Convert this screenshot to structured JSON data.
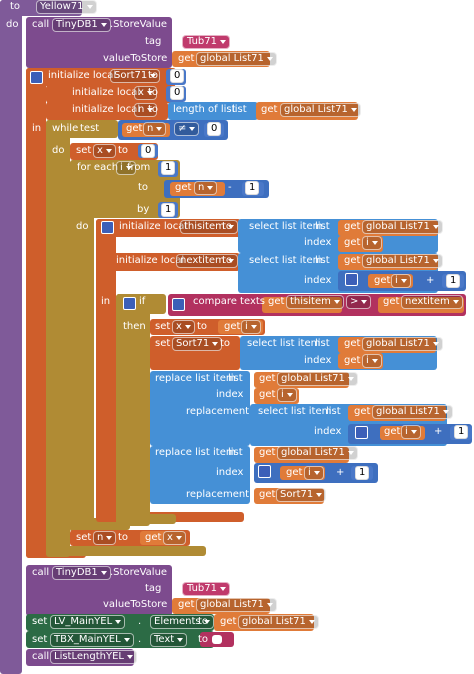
{
  "rows": [
    [
      "to",
      "Yellow71"
    ],
    [
      "do",
      "call",
      "TinyDB1",
      ".StoreValue"
    ],
    [
      "tag",
      "Tub71"
    ],
    [
      "valueToStore",
      "get",
      "global List71"
    ],
    [
      "initialize local",
      "Sort71",
      "to",
      "0"
    ],
    [
      "initialize local",
      "x",
      "to",
      "0"
    ],
    [
      "initialize local",
      "n",
      "to",
      "length of list",
      "list",
      "get",
      "global List71"
    ],
    [
      "in",
      "while",
      "test",
      "get",
      "n",
      "≠",
      "0"
    ],
    [
      "do",
      "set",
      "x",
      "to",
      "0"
    ],
    [
      "for each",
      "i",
      "from",
      "1"
    ],
    [
      "to",
      "get",
      "n",
      "-",
      "1"
    ],
    [
      "by",
      "1"
    ],
    [
      "do",
      "initialize local",
      "thisitem",
      "to",
      "select list item",
      "list",
      "get",
      "global List71"
    ],
    [
      "index",
      "get",
      "i"
    ],
    [
      "initialize local",
      "nextitem",
      "to",
      "select list item",
      "list",
      "get",
      "global List71"
    ],
    [
      "index",
      "get",
      "i",
      "+",
      "1"
    ],
    [
      "in",
      "if",
      "compare texts",
      "get",
      "thisitem",
      ">",
      "get",
      "nextitem"
    ],
    [
      "then",
      "set",
      "x",
      "to",
      "get",
      "i"
    ],
    [
      "set",
      "Sort71",
      "to",
      "select list item",
      "list",
      "get",
      "global List71"
    ],
    [
      "index",
      "get",
      "i"
    ],
    [
      "replace list item",
      "list",
      "get",
      "global List71"
    ],
    [
      "index",
      "get",
      "i"
    ],
    [
      "replacement",
      "select list item",
      "list",
      "get",
      "global List71"
    ],
    [
      "index",
      "get",
      "i",
      "+",
      "1"
    ],
    [
      "replace list item",
      "list",
      "get",
      "global List71"
    ],
    [
      "index",
      "get",
      "i",
      "+",
      "1"
    ],
    [
      "replacement",
      "get",
      "Sort71"
    ],
    [
      "set",
      "n",
      "to",
      "get",
      "x"
    ],
    [
      "call",
      "TinyDB1",
      ".StoreValue"
    ],
    [
      "tag",
      "Tub71"
    ],
    [
      "valueToStore",
      "get",
      "global List71"
    ],
    [
      "set",
      "LV_MainYEL",
      ".",
      "Elements",
      "to",
      "get",
      "global List71"
    ],
    [
      "set",
      "TBX_MainYEL",
      ".",
      "Text",
      "to"
    ],
    [
      "call",
      "ListLengthYEL"
    ]
  ]
}
